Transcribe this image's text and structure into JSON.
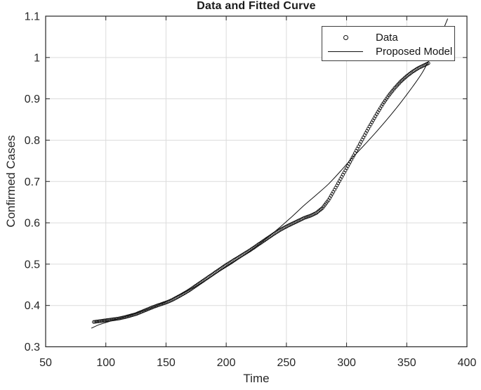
{
  "chart_data": {
    "type": "scatter+line",
    "title": "Data and Fitted Curve",
    "xlabel": "Time",
    "ylabel": "Confirmed Cases",
    "xlim": [
      50,
      400
    ],
    "ylim": [
      0.3,
      1.1
    ],
    "xticks": [
      50,
      100,
      150,
      200,
      250,
      300,
      350,
      400
    ],
    "xtick_labels": [
      "50",
      "100",
      "150",
      "200",
      "250",
      "300",
      "350",
      "400"
    ],
    "yticks": [
      0.3,
      0.4,
      0.5,
      0.6,
      0.7,
      0.8,
      0.9,
      1,
      1.1
    ],
    "ytick_labels": [
      "0.3",
      "0.4",
      "0.5",
      "0.6",
      "0.7",
      "0.8",
      "0.9",
      "1",
      "1.1"
    ],
    "grid": true,
    "legend": {
      "position": "northeast",
      "entries": [
        {
          "label": "Data",
          "sample": "circle-marker"
        },
        {
          "label": "Proposed Model",
          "sample": "solid-line"
        }
      ]
    },
    "series": [
      {
        "name": "Data",
        "type": "scatter",
        "marker": "o",
        "color": "#111111",
        "points": [
          [
            90,
            0.36
          ],
          [
            95,
            0.362
          ],
          [
            100,
            0.364
          ],
          [
            105,
            0.366
          ],
          [
            110,
            0.368
          ],
          [
            115,
            0.371
          ],
          [
            120,
            0.375
          ],
          [
            125,
            0.379
          ],
          [
            130,
            0.385
          ],
          [
            135,
            0.391
          ],
          [
            140,
            0.397
          ],
          [
            145,
            0.402
          ],
          [
            150,
            0.407
          ],
          [
            155,
            0.413
          ],
          [
            160,
            0.421
          ],
          [
            165,
            0.429
          ],
          [
            170,
            0.438
          ],
          [
            175,
            0.448
          ],
          [
            180,
            0.458
          ],
          [
            185,
            0.468
          ],
          [
            190,
            0.478
          ],
          [
            195,
            0.488
          ],
          [
            200,
            0.498
          ],
          [
            205,
            0.507
          ],
          [
            210,
            0.516
          ],
          [
            215,
            0.525
          ],
          [
            220,
            0.534
          ],
          [
            225,
            0.544
          ],
          [
            230,
            0.554
          ],
          [
            235,
            0.564
          ],
          [
            240,
            0.574
          ],
          [
            245,
            0.583
          ],
          [
            250,
            0.591
          ],
          [
            255,
            0.598
          ],
          [
            260,
            0.605
          ],
          [
            265,
            0.612
          ],
          [
            270,
            0.617
          ],
          [
            275,
            0.624
          ],
          [
            280,
            0.636
          ],
          [
            285,
            0.655
          ],
          [
            290,
            0.68
          ],
          [
            295,
            0.706
          ],
          [
            300,
            0.732
          ],
          [
            305,
            0.758
          ],
          [
            310,
            0.785
          ],
          [
            315,
            0.812
          ],
          [
            320,
            0.838
          ],
          [
            325,
            0.863
          ],
          [
            330,
            0.887
          ],
          [
            335,
            0.908
          ],
          [
            340,
            0.926
          ],
          [
            345,
            0.942
          ],
          [
            350,
            0.955
          ],
          [
            355,
            0.966
          ],
          [
            360,
            0.975
          ],
          [
            365,
            0.982
          ],
          [
            368,
            0.986
          ]
        ]
      },
      {
        "name": "Proposed Model",
        "type": "line",
        "color": "#111111",
        "points": [
          [
            88,
            0.345
          ],
          [
            95,
            0.354
          ],
          [
            105,
            0.363
          ],
          [
            115,
            0.372
          ],
          [
            125,
            0.381
          ],
          [
            135,
            0.391
          ],
          [
            145,
            0.403
          ],
          [
            155,
            0.416
          ],
          [
            165,
            0.431
          ],
          [
            175,
            0.447
          ],
          [
            185,
            0.465
          ],
          [
            195,
            0.484
          ],
          [
            205,
            0.502
          ],
          [
            215,
            0.522
          ],
          [
            225,
            0.543
          ],
          [
            235,
            0.566
          ],
          [
            245,
            0.59
          ],
          [
            255,
            0.616
          ],
          [
            265,
            0.643
          ],
          [
            275,
            0.668
          ],
          [
            285,
            0.694
          ],
          [
            295,
            0.725
          ],
          [
            305,
            0.758
          ],
          [
            315,
            0.789
          ],
          [
            325,
            0.821
          ],
          [
            335,
            0.855
          ],
          [
            345,
            0.891
          ],
          [
            355,
            0.93
          ],
          [
            363,
            0.964
          ],
          [
            371,
            1.008
          ],
          [
            378,
            1.052
          ],
          [
            384,
            1.094
          ]
        ]
      }
    ]
  },
  "colors": {
    "background": "#ffffff",
    "axis": "#262626",
    "grid": "#dcdcdc",
    "text": "#262626",
    "title": "#1a1a1a",
    "series": "#111111",
    "legend_border": "#3d3d3d"
  }
}
